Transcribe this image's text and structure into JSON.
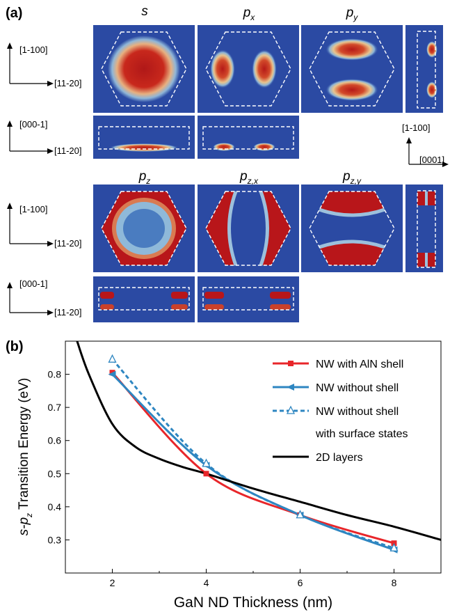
{
  "panel_a": {
    "letter": "(a)",
    "row1_labels": [
      "s",
      "p",
      "p"
    ],
    "row1_subs": [
      "",
      "x",
      "y"
    ],
    "row2_labels": [
      "p",
      "p",
      "p"
    ],
    "row2_subs": [
      "z",
      "z,x",
      "z,y"
    ],
    "axes": {
      "top_vertical": "[1-100]",
      "top_horizontal": "[11-20]",
      "side_vertical": "[000-1]",
      "side_horizontal": "[11-20]",
      "right_vertical": "[1-100]",
      "right_horizontal": "[0001]"
    }
  },
  "panel_b": {
    "letter": "(b)"
  },
  "chart_data": {
    "type": "line",
    "xlabel": "GaN ND Thickness (nm)",
    "ylabel_prefix": "s-p",
    "ylabel_sub": "z",
    "ylabel_suffix": " Transition Energy (eV)",
    "xlim": [
      1,
      9
    ],
    "ylim": [
      0.2,
      0.9
    ],
    "xticks": [
      2,
      4,
      6,
      8
    ],
    "yticks": [
      0.3,
      0.4,
      0.5,
      0.6,
      0.7,
      0.8
    ],
    "legend_position": "top-right",
    "series": [
      {
        "name": "NW with AlN shell",
        "color": "#e8262a",
        "marker": "square",
        "dash": false,
        "x": [
          2,
          4,
          6,
          8
        ],
        "y": [
          0.805,
          0.5,
          0.375,
          0.29
        ]
      },
      {
        "name": "NW without shell",
        "color": "#2e86c1",
        "marker": "left-triangle",
        "dash": false,
        "x": [
          2,
          4,
          6,
          8
        ],
        "y": [
          0.8,
          0.525,
          0.375,
          0.27
        ]
      },
      {
        "name": "NW without shell",
        "name_line2": "with surface states",
        "color": "#2e86c1",
        "marker": "open-triangle",
        "dash": true,
        "x": [
          2,
          4,
          6,
          8
        ],
        "y": [
          0.845,
          0.53,
          0.375,
          0.275
        ]
      },
      {
        "name": "2D layers",
        "color": "#000000",
        "marker": "none",
        "dash": false,
        "x": [
          1.25,
          1.5,
          2,
          2.5,
          3,
          3.5,
          4,
          5,
          6,
          7,
          8,
          9
        ],
        "y": [
          0.9,
          0.8,
          0.65,
          0.58,
          0.545,
          0.52,
          0.5,
          0.455,
          0.415,
          0.375,
          0.34,
          0.3
        ]
      }
    ]
  }
}
